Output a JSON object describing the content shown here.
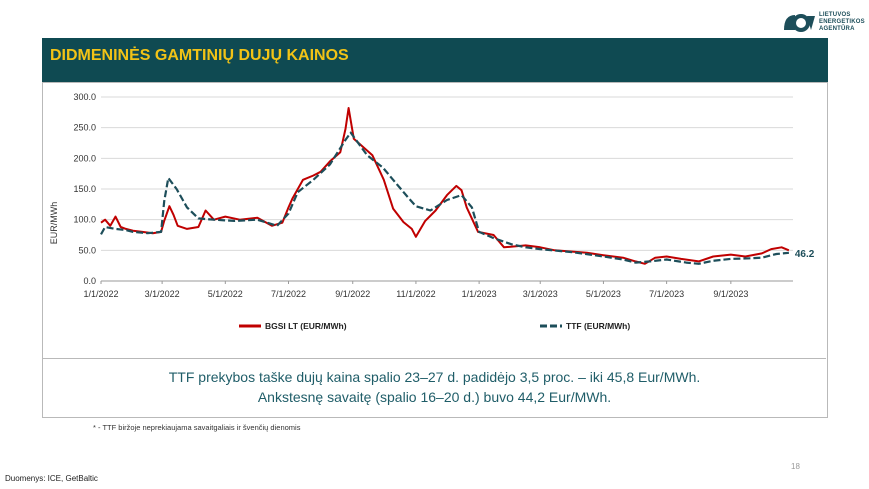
{
  "logo": {
    "text_lines": [
      "LIETUVOS",
      "ENERGETIKOS",
      "AGENTŪRA"
    ]
  },
  "banner": {
    "title": "DIDMENINĖS GAMTINIŲ DUJŲ KAINOS"
  },
  "footnote": "* - TTF biržoje neprekiaujama savaitgaliais ir švenčių dienomis",
  "summary": {
    "line1": "TTF prekybos taške dujų kaina spalio 23–27 d. padidėjo 3,5 proc. – iki 45,8 Eur/MWh.",
    "line2": "Ankstesnę savaitę (spalio 16–20 d.) buvo 44,2 Eur/MWh."
  },
  "source": "Duomenys: ICE, GetBaltic",
  "page_number": "18",
  "chart_data": {
    "type": "line",
    "title": "",
    "xlabel": "",
    "ylabel": "EUR/MWh",
    "ylim": [
      0,
      300
    ],
    "xlim": [
      "2022-01-01",
      "2023-10-31"
    ],
    "y_ticks": [
      "0.0",
      "50.0",
      "100.0",
      "150.0",
      "200.0",
      "250.0",
      "300.0"
    ],
    "x_ticks": [
      {
        "date": "2022-01-01",
        "label": "1/1/2022"
      },
      {
        "date": "2022-03-01",
        "label": "3/1/2022"
      },
      {
        "date": "2022-05-01",
        "label": "5/1/2022"
      },
      {
        "date": "2022-07-01",
        "label": "7/1/2022"
      },
      {
        "date": "2022-09-01",
        "label": "9/1/2022"
      },
      {
        "date": "2022-11-01",
        "label": "11/1/2022"
      },
      {
        "date": "2023-01-01",
        "label": "1/1/2023"
      },
      {
        "date": "2023-03-01",
        "label": "3/1/2023"
      },
      {
        "date": "2023-05-01",
        "label": "5/1/2023"
      },
      {
        "date": "2023-07-01",
        "label": "7/1/2023"
      },
      {
        "date": "2023-09-01",
        "label": "9/1/2023"
      }
    ],
    "grid": true,
    "legend_position": "bottom",
    "colors": {
      "BGSI": "#c00000",
      "TTF": "#1d4e5a"
    },
    "series": [
      {
        "name": "BGSI LT (EUR/MWh)",
        "style": "solid",
        "points": [
          [
            "2022-01-01",
            95
          ],
          [
            "2022-01-05",
            100
          ],
          [
            "2022-01-10",
            90
          ],
          [
            "2022-01-15",
            105
          ],
          [
            "2022-01-20",
            88
          ],
          [
            "2022-01-25",
            85
          ],
          [
            "2022-02-01",
            82
          ],
          [
            "2022-02-10",
            80
          ],
          [
            "2022-02-20",
            78
          ],
          [
            "2022-02-28",
            80
          ],
          [
            "2022-03-03",
            98
          ],
          [
            "2022-03-08",
            122
          ],
          [
            "2022-03-12",
            108
          ],
          [
            "2022-03-16",
            90
          ],
          [
            "2022-03-25",
            85
          ],
          [
            "2022-04-05",
            88
          ],
          [
            "2022-04-12",
            115
          ],
          [
            "2022-04-20",
            100
          ],
          [
            "2022-05-01",
            105
          ],
          [
            "2022-05-15",
            100
          ],
          [
            "2022-06-01",
            103
          ],
          [
            "2022-06-15",
            90
          ],
          [
            "2022-06-25",
            95
          ],
          [
            "2022-07-01",
            120
          ],
          [
            "2022-07-05",
            135
          ],
          [
            "2022-07-15",
            165
          ],
          [
            "2022-07-25",
            172
          ],
          [
            "2022-08-01",
            178
          ],
          [
            "2022-08-10",
            195
          ],
          [
            "2022-08-20",
            210
          ],
          [
            "2022-08-25",
            248
          ],
          [
            "2022-08-28",
            282
          ],
          [
            "2022-09-02",
            232
          ],
          [
            "2022-09-10",
            220
          ],
          [
            "2022-09-20",
            205
          ],
          [
            "2022-10-01",
            165
          ],
          [
            "2022-10-10",
            118
          ],
          [
            "2022-10-20",
            96
          ],
          [
            "2022-10-28",
            85
          ],
          [
            "2022-11-01",
            72
          ],
          [
            "2022-11-10",
            98
          ],
          [
            "2022-11-20",
            115
          ],
          [
            "2022-12-01",
            140
          ],
          [
            "2022-12-10",
            155
          ],
          [
            "2022-12-15",
            148
          ],
          [
            "2022-12-20",
            120
          ],
          [
            "2022-12-31",
            80
          ],
          [
            "2023-01-15",
            75
          ],
          [
            "2023-01-25",
            55
          ],
          [
            "2023-02-15",
            58
          ],
          [
            "2023-03-01",
            55
          ],
          [
            "2023-03-15",
            50
          ],
          [
            "2023-04-01",
            48
          ],
          [
            "2023-04-15",
            46
          ],
          [
            "2023-05-01",
            42
          ],
          [
            "2023-05-20",
            38
          ],
          [
            "2023-06-01",
            32
          ],
          [
            "2023-06-10",
            28
          ],
          [
            "2023-06-20",
            38
          ],
          [
            "2023-07-01",
            40
          ],
          [
            "2023-07-15",
            36
          ],
          [
            "2023-08-01",
            32
          ],
          [
            "2023-08-15",
            40
          ],
          [
            "2023-09-01",
            43
          ],
          [
            "2023-09-15",
            40
          ],
          [
            "2023-10-01",
            45
          ],
          [
            "2023-10-10",
            52
          ],
          [
            "2023-10-20",
            55
          ],
          [
            "2023-10-27",
            50
          ]
        ]
      },
      {
        "name": "TTF (EUR/MWh)",
        "style": "dashed",
        "points": [
          [
            "2022-01-01",
            76
          ],
          [
            "2022-01-05",
            88
          ],
          [
            "2022-01-15",
            85
          ],
          [
            "2022-01-25",
            83
          ],
          [
            "2022-02-01",
            80
          ],
          [
            "2022-02-15",
            78
          ],
          [
            "2022-02-28",
            80
          ],
          [
            "2022-03-03",
            130
          ],
          [
            "2022-03-07",
            168
          ],
          [
            "2022-03-15",
            150
          ],
          [
            "2022-03-25",
            120
          ],
          [
            "2022-04-05",
            102
          ],
          [
            "2022-04-20",
            100
          ],
          [
            "2022-05-10",
            98
          ],
          [
            "2022-06-01",
            100
          ],
          [
            "2022-06-20",
            90
          ],
          [
            "2022-07-01",
            110
          ],
          [
            "2022-07-10",
            145
          ],
          [
            "2022-07-25",
            165
          ],
          [
            "2022-08-10",
            190
          ],
          [
            "2022-08-25",
            230
          ],
          [
            "2022-08-30",
            242
          ],
          [
            "2022-09-05",
            228
          ],
          [
            "2022-09-15",
            205
          ],
          [
            "2022-09-30",
            185
          ],
          [
            "2022-10-10",
            165
          ],
          [
            "2022-10-25",
            135
          ],
          [
            "2022-11-01",
            122
          ],
          [
            "2022-11-15",
            115
          ],
          [
            "2022-12-01",
            132
          ],
          [
            "2022-12-15",
            140
          ],
          [
            "2022-12-25",
            120
          ],
          [
            "2023-01-01",
            80
          ],
          [
            "2023-01-15",
            70
          ],
          [
            "2023-02-01",
            60
          ],
          [
            "2023-02-15",
            55
          ],
          [
            "2023-03-01",
            52
          ],
          [
            "2023-04-01",
            47
          ],
          [
            "2023-05-01",
            40
          ],
          [
            "2023-05-20",
            35
          ],
          [
            "2023-06-01",
            30
          ],
          [
            "2023-06-15",
            32
          ],
          [
            "2023-07-01",
            35
          ],
          [
            "2023-07-20",
            30
          ],
          [
            "2023-08-01",
            28
          ],
          [
            "2023-08-15",
            33
          ],
          [
            "2023-09-01",
            36
          ],
          [
            "2023-09-20",
            37
          ],
          [
            "2023-10-01",
            38
          ],
          [
            "2023-10-15",
            44
          ],
          [
            "2023-10-27",
            46
          ]
        ]
      }
    ],
    "annotations": [
      {
        "text": "46.2",
        "series": "TTF (EUR/MWh)",
        "position": "end"
      }
    ]
  }
}
